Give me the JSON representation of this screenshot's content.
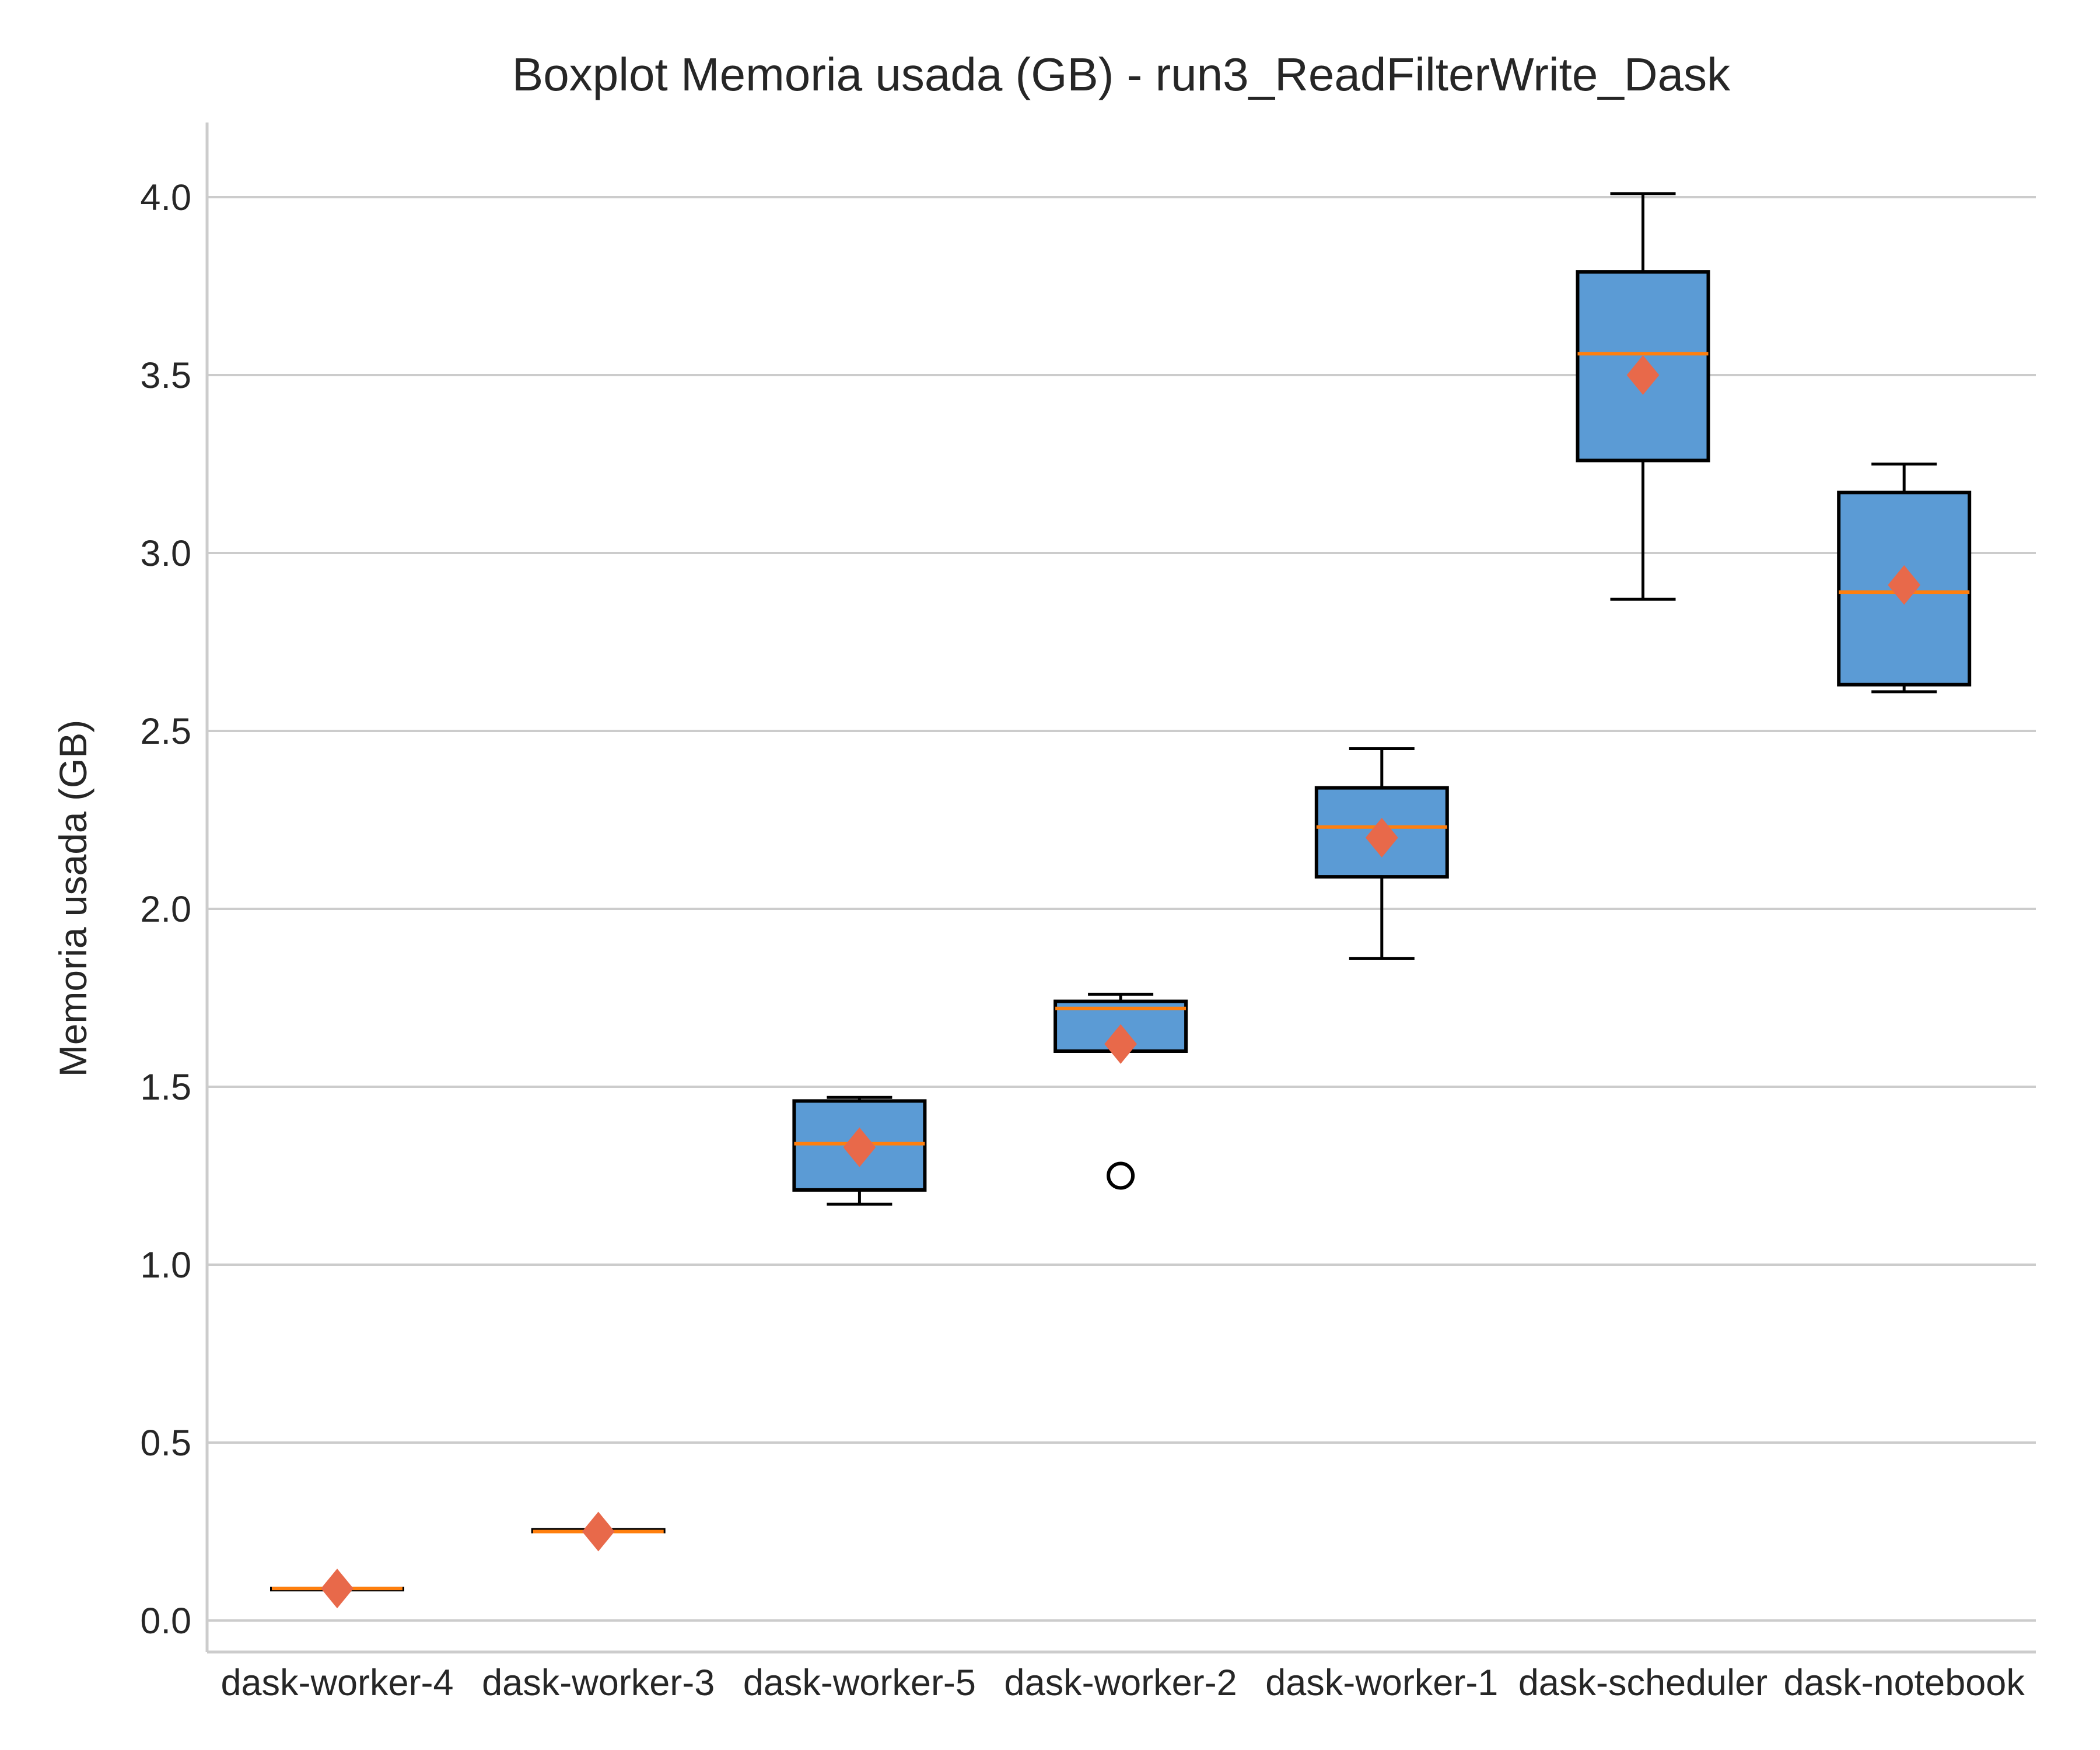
{
  "colors": {
    "box_fill": "#5b9bd5",
    "median": "#ff7f0e",
    "mean_marker": "#e8694a",
    "grid": "#cccccc",
    "text": "#262626"
  },
  "chart_data": {
    "type": "box",
    "title": "Boxplot Memoria usada (GB) - run3_ReadFilterWrite_Dask",
    "xlabel": "",
    "ylabel": "Memoria usada (GB)",
    "ylim": [
      -0.1,
      4.2
    ],
    "yticks": [
      "0.0",
      "0.5",
      "1.0",
      "1.5",
      "2.0",
      "2.5",
      "3.0",
      "3.5",
      "4.0"
    ],
    "grid": "y",
    "categories": [
      "dask-worker-4",
      "dask-worker-3",
      "dask-worker-5",
      "dask-worker-2",
      "dask-worker-1",
      "dask-scheduler",
      "dask-notebook"
    ],
    "boxes": [
      {
        "min": 0.09,
        "q1": 0.09,
        "median": 0.09,
        "q3": 0.09,
        "max": 0.09,
        "mean": 0.09,
        "outliers": []
      },
      {
        "min": 0.25,
        "q1": 0.25,
        "median": 0.25,
        "q3": 0.255,
        "max": 0.255,
        "mean": 0.25,
        "outliers": []
      },
      {
        "min": 1.17,
        "q1": 1.21,
        "median": 1.34,
        "q3": 1.46,
        "max": 1.47,
        "mean": 1.33,
        "outliers": []
      },
      {
        "min": 1.6,
        "q1": 1.6,
        "median": 1.72,
        "q3": 1.74,
        "max": 1.76,
        "mean": 1.62,
        "outliers": [
          1.25
        ]
      },
      {
        "min": 1.86,
        "q1": 2.09,
        "median": 2.23,
        "q3": 2.34,
        "max": 2.45,
        "mean": 2.2,
        "outliers": []
      },
      {
        "min": 2.87,
        "q1": 3.26,
        "median": 3.56,
        "q3": 3.79,
        "max": 4.01,
        "mean": 3.5,
        "outliers": []
      },
      {
        "min": 2.61,
        "q1": 2.63,
        "median": 2.89,
        "q3": 3.17,
        "max": 3.25,
        "mean": 2.91,
        "outliers": []
      }
    ]
  }
}
